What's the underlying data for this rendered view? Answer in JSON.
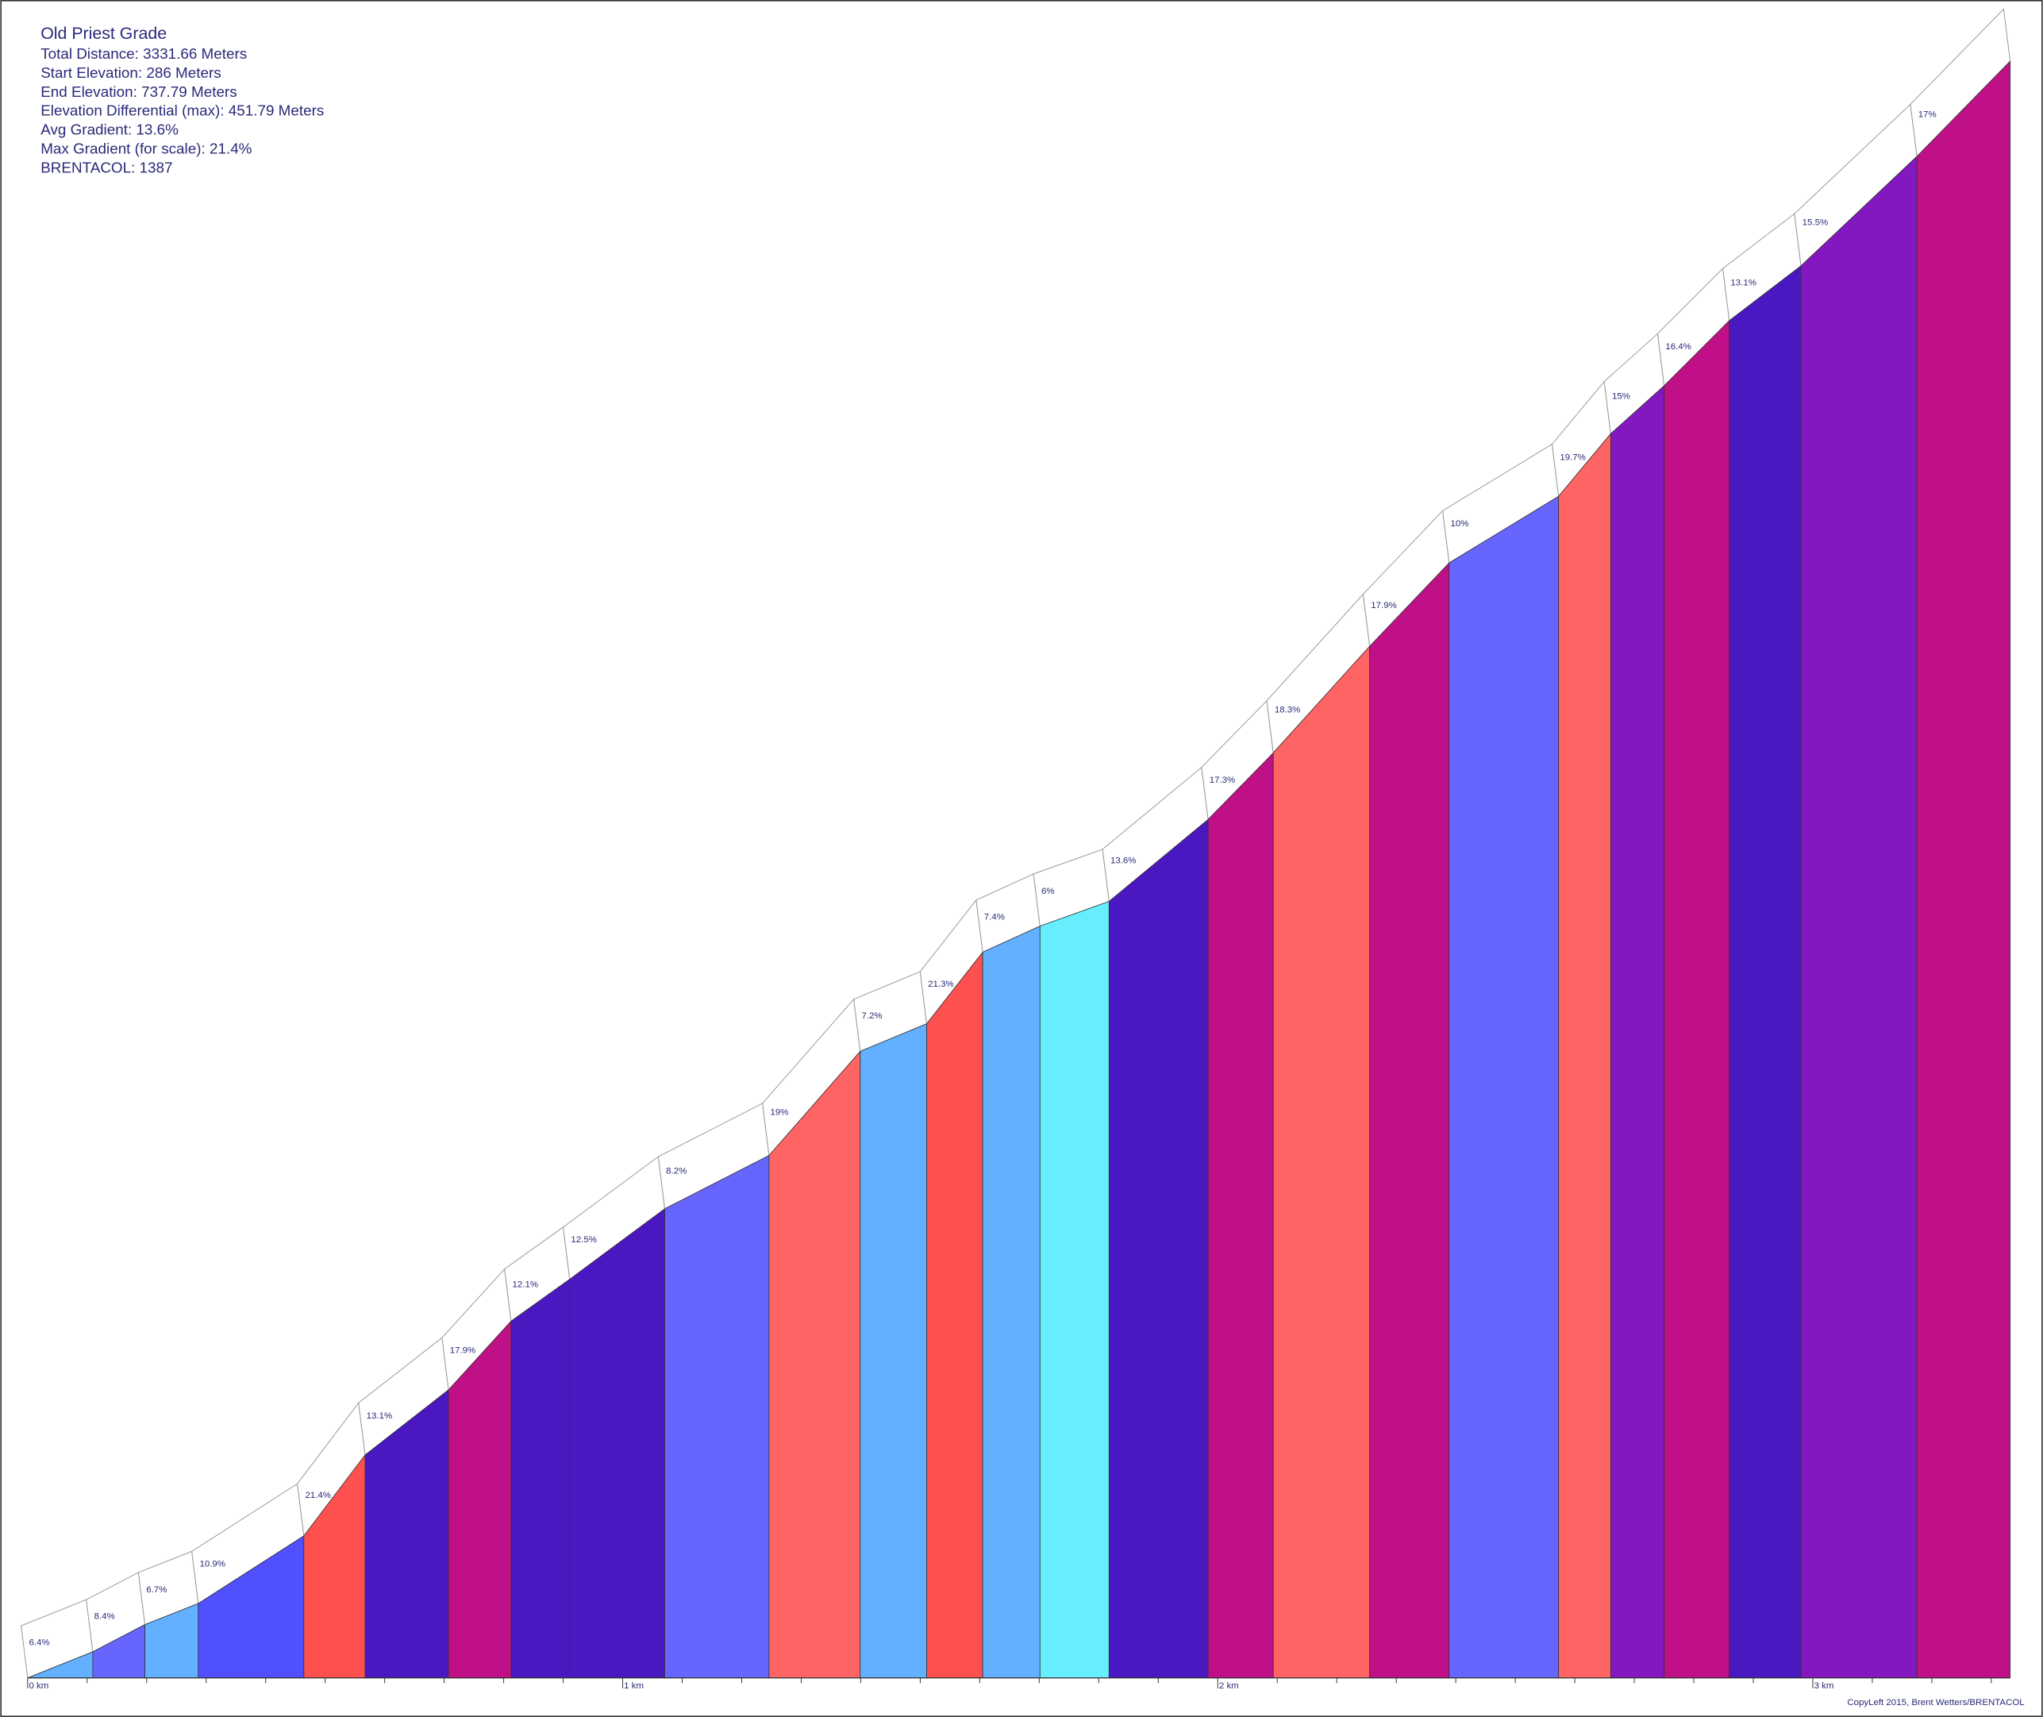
{
  "chart_data": {
    "type": "profile",
    "title": "Old Priest Grade",
    "info": [
      "Total Distance: 3331.66 Meters",
      "Start Elevation: 286 Meters",
      "End Elevation: 737.79 Meters",
      "Elevation Differential (max): 451.79 Meters",
      "Avg Gradient: 13.6%",
      "Max Gradient (for scale): 21.4%",
      "BRENTACOL: 1387"
    ],
    "footer": "CopyLeft 2015, Brent Wetters/BRENTACOL",
    "x": [
      0,
      109.5,
      197.1,
      286.8,
      464.2,
      567.1,
      707.3,
      812.4,
      910.9,
      1070.7,
      1245.9,
      1399.2,
      1510.8,
      1605.0,
      1701.3,
      1817.4,
      1983.8,
      2093.3,
      2255.3,
      2388.9,
      2572.8,
      2660.4,
      2750.2,
      2859.7,
      2980.1,
      3175.0,
      3331.66
    ],
    "elevation": [
      286,
      293.3,
      300.9,
      306.8,
      325.7,
      348.3,
      366.5,
      385.7,
      397.4,
      417.1,
      432.0,
      461.1,
      468.8,
      488.8,
      496.1,
      503.0,
      525.9,
      544.5,
      574.3,
      597.6,
      616.2,
      633.7,
      647.1,
      665.3,
      680.6,
      711.2,
      737.79
    ],
    "gradients": [
      6.4,
      8.4,
      6.7,
      10.9,
      21.4,
      13.1,
      17.9,
      12.1,
      12.5,
      8.2,
      19,
      7.2,
      21.3,
      7.4,
      6,
      13.6,
      17.3,
      18.3,
      17.9,
      10,
      19.7,
      15,
      16.4,
      13.1,
      15.5,
      17
    ],
    "gradient_labels": [
      "6.4%",
      "8.4%",
      "6.7%",
      "10.9%",
      "21.4%",
      "13.1%",
      "17.9%",
      "12.1%",
      "12.5%",
      "8.2%",
      "19%",
      "7.2%",
      "21.3%",
      "7.4%",
      "6%",
      "13.6%",
      "17.3%",
      "18.3%",
      "17.9%",
      "10%",
      "19.7%",
      "15%",
      "16.4%",
      "13.1%",
      "15.5%",
      "17%"
    ],
    "colors": [
      "#62b0ff",
      "#6666ff",
      "#62b0ff",
      "#5050ff",
      "#ff5050",
      "#4a18c0",
      "#c01088",
      "#4a18c0",
      "#4a18c0",
      "#6666ff",
      "#ff6464",
      "#62b0ff",
      "#ff5050",
      "#62b0ff",
      "#66eeff",
      "#4a18c0",
      "#c01088",
      "#ff6464",
      "#c01088",
      "#6666ff",
      "#ff6464",
      "#8418c0",
      "#c01088",
      "#4a18c0",
      "#8418c0",
      "#c01088"
    ],
    "xlim": [
      0,
      3331.66
    ],
    "ylim": [
      286,
      737.79
    ],
    "xticks": [
      {
        "value": 0,
        "label": "0 km"
      },
      {
        "value": 1000,
        "label": "1 km"
      },
      {
        "value": 2000,
        "label": "2 km"
      },
      {
        "value": 3000,
        "label": "3 km"
      }
    ],
    "minor_xticks": [
      100,
      200,
      300,
      400,
      500,
      600,
      700,
      800,
      900,
      1100,
      1200,
      1300,
      1400,
      1500,
      1600,
      1700,
      1800,
      1900,
      2100,
      2200,
      2300,
      2400,
      2500,
      2600,
      2700,
      2800,
      2900,
      3100,
      3200,
      3300
    ]
  }
}
